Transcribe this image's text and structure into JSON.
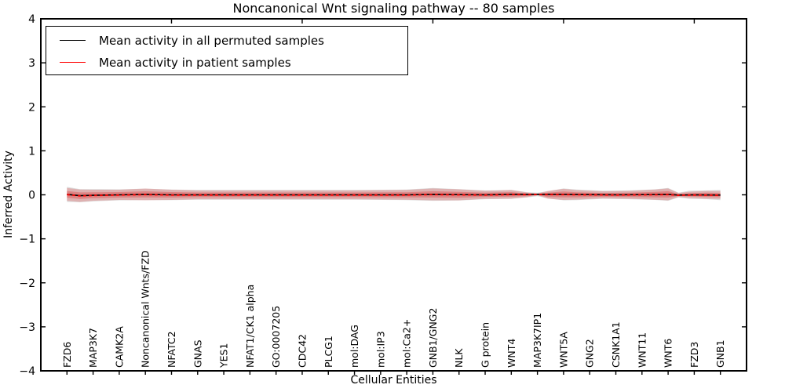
{
  "chart_data": {
    "type": "area",
    "title": "Noncanonical Wnt signaling pathway -- 80 samples",
    "xlabel": "Cellular Entities",
    "ylabel": "Inferred Activity",
    "ylim": [
      -4,
      4
    ],
    "xlim": [
      0,
      27
    ],
    "grid": false,
    "legend_position": "upper left",
    "ytick_labels": [
      "4",
      "3",
      "2",
      "1",
      "0",
      "−1",
      "−2",
      "−3",
      "−4"
    ],
    "ytick_values": [
      4,
      3,
      2,
      1,
      0,
      -1,
      -2,
      -3,
      -4
    ],
    "xticks_top": [
      5,
      10,
      15,
      20,
      25
    ],
    "categories": [
      "FZD6",
      "MAP3K7",
      "CAMK2A",
      "Noncanonical Wnts/FZD",
      "NFATC2",
      "GNAS",
      "YES1",
      "NFAT1/CK1 alpha",
      "GO:0007205",
      "CDC42",
      "PLCG1",
      "mol:DAG",
      "mol:IP3",
      "mol:Ca2+",
      "GNB1/GNG2",
      "NLK",
      "G protein",
      "WNT4",
      "MAP3K7IP1",
      "WNT5A",
      "GNG2",
      "CSNK1A1",
      "WNT11",
      "WNT6",
      "FZD3",
      "GNB1"
    ],
    "legend": [
      {
        "label": "Mean activity in all permuted samples",
        "color": "#000000"
      },
      {
        "label": "Mean activity in patient samples",
        "color": "#ff0000"
      }
    ],
    "series": [
      {
        "name": "permuted-band",
        "kind": "band",
        "color": "#d6d6d6",
        "opacity": 0.85,
        "x": [
          1,
          1.5,
          2,
          3,
          4,
          5,
          6,
          8,
          10,
          12,
          14,
          15,
          16,
          17,
          18,
          18.6,
          19,
          19.4,
          20,
          20.5,
          21.5,
          22.5,
          23.5,
          24,
          24.4,
          24.8,
          25.5,
          26
        ],
        "center": [
          0.01,
          -0.02,
          -0.01,
          0,
          0.01,
          0,
          0,
          0,
          0,
          0,
          0,
          0.01,
          0,
          0,
          0.01,
          0,
          0.01,
          0,
          0.01,
          0,
          0,
          0,
          0.005,
          0.01,
          -0.005,
          0,
          0,
          -0.005
        ],
        "halfwidth": [
          0.17,
          0.15,
          0.14,
          0.125,
          0.13,
          0.12,
          0.11,
          0.11,
          0.11,
          0.11,
          0.12,
          0.145,
          0.13,
          0.1,
          0.1,
          0.06,
          0.04,
          0.08,
          0.135,
          0.12,
          0.09,
          0.1,
          0.12,
          0.145,
          0.055,
          0.09,
          0.1,
          0.115
        ]
      },
      {
        "name": "patient-band-outer",
        "kind": "band",
        "color": "#e65050",
        "opacity": 0.3,
        "x": [
          1,
          1.5,
          2,
          3,
          4,
          5,
          6,
          8,
          10,
          12,
          14,
          15,
          16,
          17,
          18,
          18.6,
          19,
          19.4,
          20,
          20.5,
          21.5,
          22.5,
          23.5,
          24,
          24.4,
          24.8,
          25.5,
          26
        ],
        "center": [
          0.01,
          -0.02,
          -0.01,
          0,
          0.01,
          0,
          0,
          0,
          0,
          0,
          0,
          0.01,
          0,
          0,
          0.01,
          0,
          0.01,
          0,
          0.01,
          0,
          0,
          0,
          0.005,
          0.01,
          -0.005,
          0,
          0,
          -0.005
        ],
        "halfwidth": [
          0.145,
          0.14,
          0.125,
          0.115,
          0.133,
          0.115,
          0.1,
          0.1,
          0.1,
          0.1,
          0.11,
          0.134,
          0.125,
          0.09,
          0.098,
          0.053,
          0.018,
          0.089,
          0.125,
          0.107,
          0.08,
          0.089,
          0.116,
          0.134,
          0.045,
          0.07,
          0.089,
          0.09
        ]
      },
      {
        "name": "patient-band-core",
        "kind": "band",
        "color": "#e03c3c",
        "opacity": 0.38,
        "x": [
          1,
          1.5,
          2,
          3,
          4,
          5,
          6,
          8,
          10,
          12,
          14,
          15,
          16,
          17,
          18,
          18.6,
          19,
          19.4,
          20,
          20.5,
          21.5,
          22.5,
          23.5,
          24,
          24.4,
          24.8,
          25.5,
          26
        ],
        "center": [
          0.01,
          -0.02,
          -0.01,
          0,
          0.01,
          0,
          0,
          0,
          0,
          0,
          0,
          0.01,
          0,
          0,
          0.01,
          0,
          0.01,
          0,
          0.01,
          0,
          0,
          0,
          0.005,
          0.01,
          -0.005,
          0,
          0,
          -0.005
        ],
        "halfwidth": [
          0.078,
          0.075,
          0.067,
          0.062,
          0.071,
          0.062,
          0.054,
          0.054,
          0.054,
          0.054,
          0.059,
          0.072,
          0.067,
          0.048,
          0.053,
          0.028,
          0.01,
          0.048,
          0.067,
          0.057,
          0.043,
          0.048,
          0.062,
          0.072,
          0.024,
          0.038,
          0.048,
          0.048
        ]
      },
      {
        "name": "mean-permuted",
        "kind": "line",
        "color": "#000000",
        "width": 1.6,
        "dash": null,
        "x": [
          1,
          1.5,
          2,
          3,
          4,
          5,
          8,
          11,
          14,
          15,
          17,
          18,
          19,
          20,
          22,
          24,
          24.4,
          25,
          26
        ],
        "y": [
          0.01,
          -0.02,
          -0.01,
          0,
          0.01,
          0,
          0,
          0,
          0,
          0.01,
          0,
          0.01,
          0.01,
          0.01,
          0,
          0.01,
          -0.005,
          0,
          -0.005
        ]
      },
      {
        "name": "mean-patient",
        "kind": "line",
        "color": "#ff0000",
        "width": 1.8,
        "dash": "3.5,3.5",
        "x": [
          1,
          1.5,
          2,
          3,
          4,
          5,
          8,
          11,
          14,
          15,
          17,
          18,
          19,
          20,
          22,
          24,
          24.4,
          25,
          26
        ],
        "y": [
          0.005,
          -0.025,
          -0.015,
          -0.005,
          0.005,
          -0.005,
          -0.005,
          -0.005,
          -0.005,
          0.005,
          -0.005,
          0.005,
          0.005,
          0.005,
          -0.005,
          0.005,
          -0.01,
          -0.005,
          -0.01
        ]
      }
    ]
  },
  "colors": {
    "axis": "#000000",
    "background": "#ffffff"
  }
}
